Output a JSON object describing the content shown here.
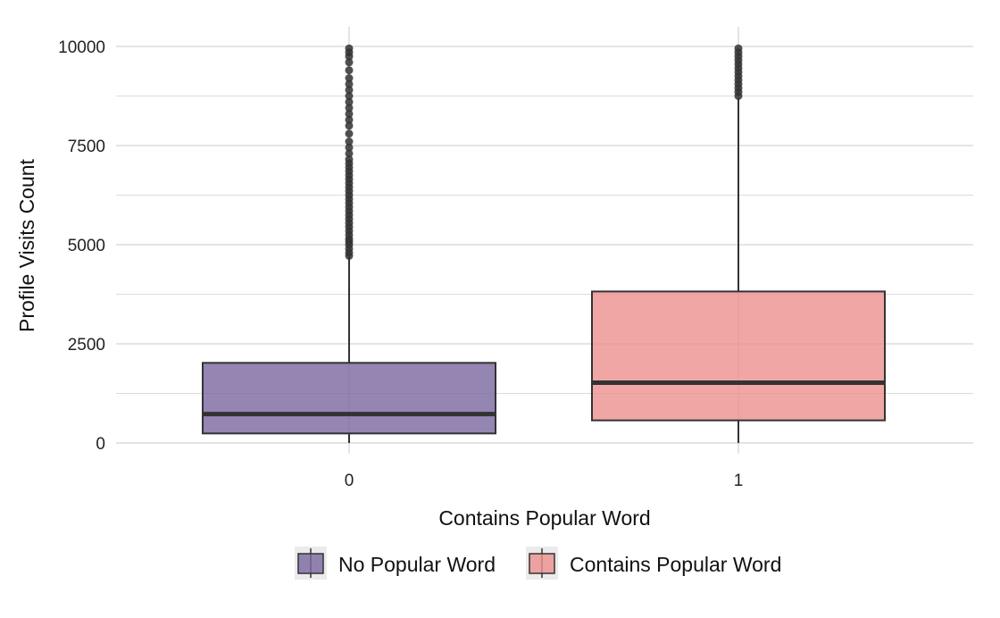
{
  "chart_data": {
    "type": "boxplot",
    "xlabel": "Contains Popular Word",
    "ylabel": "Profile Visits Count",
    "ylim": [
      -250,
      10500
    ],
    "yticks": [
      0,
      2500,
      5000,
      7500,
      10000
    ],
    "grid": true,
    "legend_position": "bottom",
    "categories": [
      "0",
      "1"
    ],
    "series": [
      {
        "name": "No Popular Word",
        "color": "#7a66a0",
        "x": "0",
        "stats": {
          "whisker_low": 0,
          "q1": 240,
          "median": 730,
          "q3": 2020,
          "whisker_high": 4700
        },
        "outliers": [
          4720,
          4800,
          4900,
          5000,
          5080,
          5150,
          5250,
          5350,
          5450,
          5550,
          5650,
          5750,
          5850,
          5950,
          6050,
          6150,
          6250,
          6350,
          6450,
          6550,
          6650,
          6750,
          6850,
          6950,
          7050,
          7150,
          7300,
          7450,
          7600,
          7800,
          8000,
          8150,
          8300,
          8450,
          8600,
          8750,
          8900,
          9050,
          9200,
          9400,
          9600,
          9750,
          9850,
          9950
        ]
      },
      {
        "name": "Contains Popular Word",
        "color": "#ed9090",
        "x": "1",
        "stats": {
          "whisker_low": 0,
          "q1": 570,
          "median": 1520,
          "q3": 3820,
          "whisker_high": 8700
        },
        "outliers": [
          8750,
          8850,
          8950,
          9050,
          9150,
          9250,
          9350,
          9450,
          9550,
          9650,
          9750,
          9850,
          9950
        ]
      }
    ]
  }
}
